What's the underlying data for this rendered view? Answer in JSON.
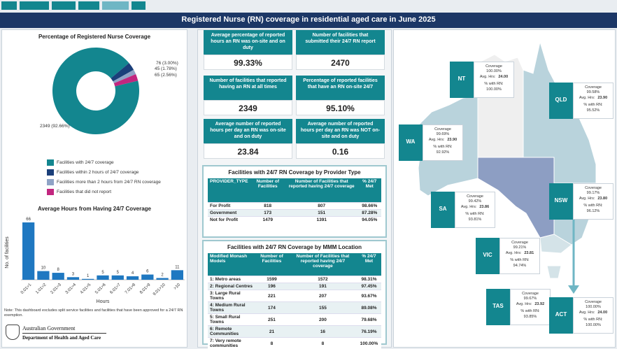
{
  "title": "Registered Nurse (RN) coverage in residential aged care in June 2025",
  "chart_data": [
    {
      "type": "pie",
      "donut": true,
      "title": "Percentage of Registered Nurse Coverage",
      "categories": [
        "Facilities with 24/7 coverage",
        "Facilities within 2 hours of 24/7 coverage",
        "Facilities more than 2 hours from 24/7 RN coverage",
        "Facilities that did not report"
      ],
      "values": [
        2349,
        76,
        45,
        65
      ],
      "value_labels": [
        "2349 (92.66%)",
        "76 (3.00%)",
        "45 (1.78%)",
        "65 (2.56%)"
      ],
      "colors": [
        "#13868f",
        "#1b3f7a",
        "#8fa3c6",
        "#c2267f"
      ]
    },
    {
      "type": "bar",
      "title": "Average Hours from Having 24/7 Coverage",
      "x_label": "Hours",
      "y_label": "No. of facilities",
      "categories": [
        "0.01>1",
        "1.01>2",
        "2.01>3",
        "3.01>4",
        "4.01>5",
        "5.01>6",
        "6.01>7",
        "7.01>8",
        "8.01>9",
        "9.01>10",
        ">10"
      ],
      "values": [
        66,
        10,
        8,
        3,
        1,
        5,
        5,
        4,
        6,
        2,
        11
      ],
      "color": "#1f78c1"
    }
  ],
  "note": "Note: This dashboard excludes split service facilities and facilities that have been approved for a 24/7 RN exemption.",
  "logo": {
    "line1": "Australian Government",
    "line2": "Department of Health and Aged Care"
  },
  "kpis": [
    {
      "label": "Average percentage of reported hours an RN was on-site and on duty",
      "value": "99.33%"
    },
    {
      "label": "Number of facilities that submitted their 24/7 RN report",
      "value": "2470"
    },
    {
      "label": "Number of facilities that reported having an RN at all times",
      "value": "2349"
    },
    {
      "label": "Percentage of reported facilities that have an RN on-site 24/7",
      "value": "95.10%"
    },
    {
      "label": "Average number of reported hours per day an RN was on-site and on duty",
      "value": "23.84"
    },
    {
      "label": "Average number of reported hours per day an RN was NOT on-site and on duty",
      "value": "0.16"
    }
  ],
  "tables": [
    {
      "title": "Facilities with 24/7 RN Coverage by Provider Type",
      "headers": [
        "PROVIDER_TYPE",
        "Number of Facilities",
        "Number of Facilities that reported having 24/7 coverage",
        "% 24/7 Met"
      ],
      "rows": [
        [
          "For Profit",
          "818",
          "807",
          "98.66%"
        ],
        [
          "Government",
          "173",
          "151",
          "87.28%"
        ],
        [
          "Not for Profit",
          "1479",
          "1391",
          "94.05%"
        ]
      ]
    },
    {
      "title": "Facilities with 24/7 RN Coverage by MMM Location",
      "headers": [
        "Modified Monash Models",
        "Number of Facilities",
        "Number of Facilities that reported having 24/7 coverage",
        "% 24/7 Met"
      ],
      "rows": [
        [
          "1: Metro areas",
          "1599",
          "1572",
          "98.31%"
        ],
        [
          "2: Regional Centres",
          "196",
          "191",
          "97.45%"
        ],
        [
          "3: Large Rural Towns",
          "221",
          "207",
          "93.67%"
        ],
        [
          "4: Medium Rural Towns",
          "174",
          "155",
          "89.08%"
        ],
        [
          "5: Small Rural Towns",
          "251",
          "200",
          "79.68%"
        ],
        [
          "6: Remote Communities",
          "21",
          "16",
          "76.19%"
        ],
        [
          "7: Very remote communities",
          "8",
          "8",
          "100.00%"
        ]
      ]
    }
  ],
  "state_labels": {
    "coverage": "Coverage",
    "avg": "Avg. Hrs:",
    "rn": "% with RN:"
  },
  "states": [
    {
      "name": "NT",
      "coverage": "100.00%",
      "avg": "24.00",
      "rn": "100.00%"
    },
    {
      "name": "QLD",
      "coverage": "99.58%",
      "avg": "23.90",
      "rn": "95.52%"
    },
    {
      "name": "WA",
      "coverage": "99.69%",
      "avg": "23.90",
      "rn": "92.92%"
    },
    {
      "name": "SA",
      "coverage": "99.42%",
      "avg": "23.86",
      "rn": "93.81%"
    },
    {
      "name": "NSW",
      "coverage": "99.17%",
      "avg": "23.80",
      "rn": "96.12%"
    },
    {
      "name": "VIC",
      "coverage": "99.21%",
      "avg": "23.81",
      "rn": "94.74%"
    },
    {
      "name": "TAS",
      "coverage": "99.67%",
      "avg": "23.92",
      "rn": "93.85%"
    },
    {
      "name": "ACT",
      "coverage": "100.00%",
      "avg": "24.00",
      "rn": "100.00%"
    }
  ]
}
